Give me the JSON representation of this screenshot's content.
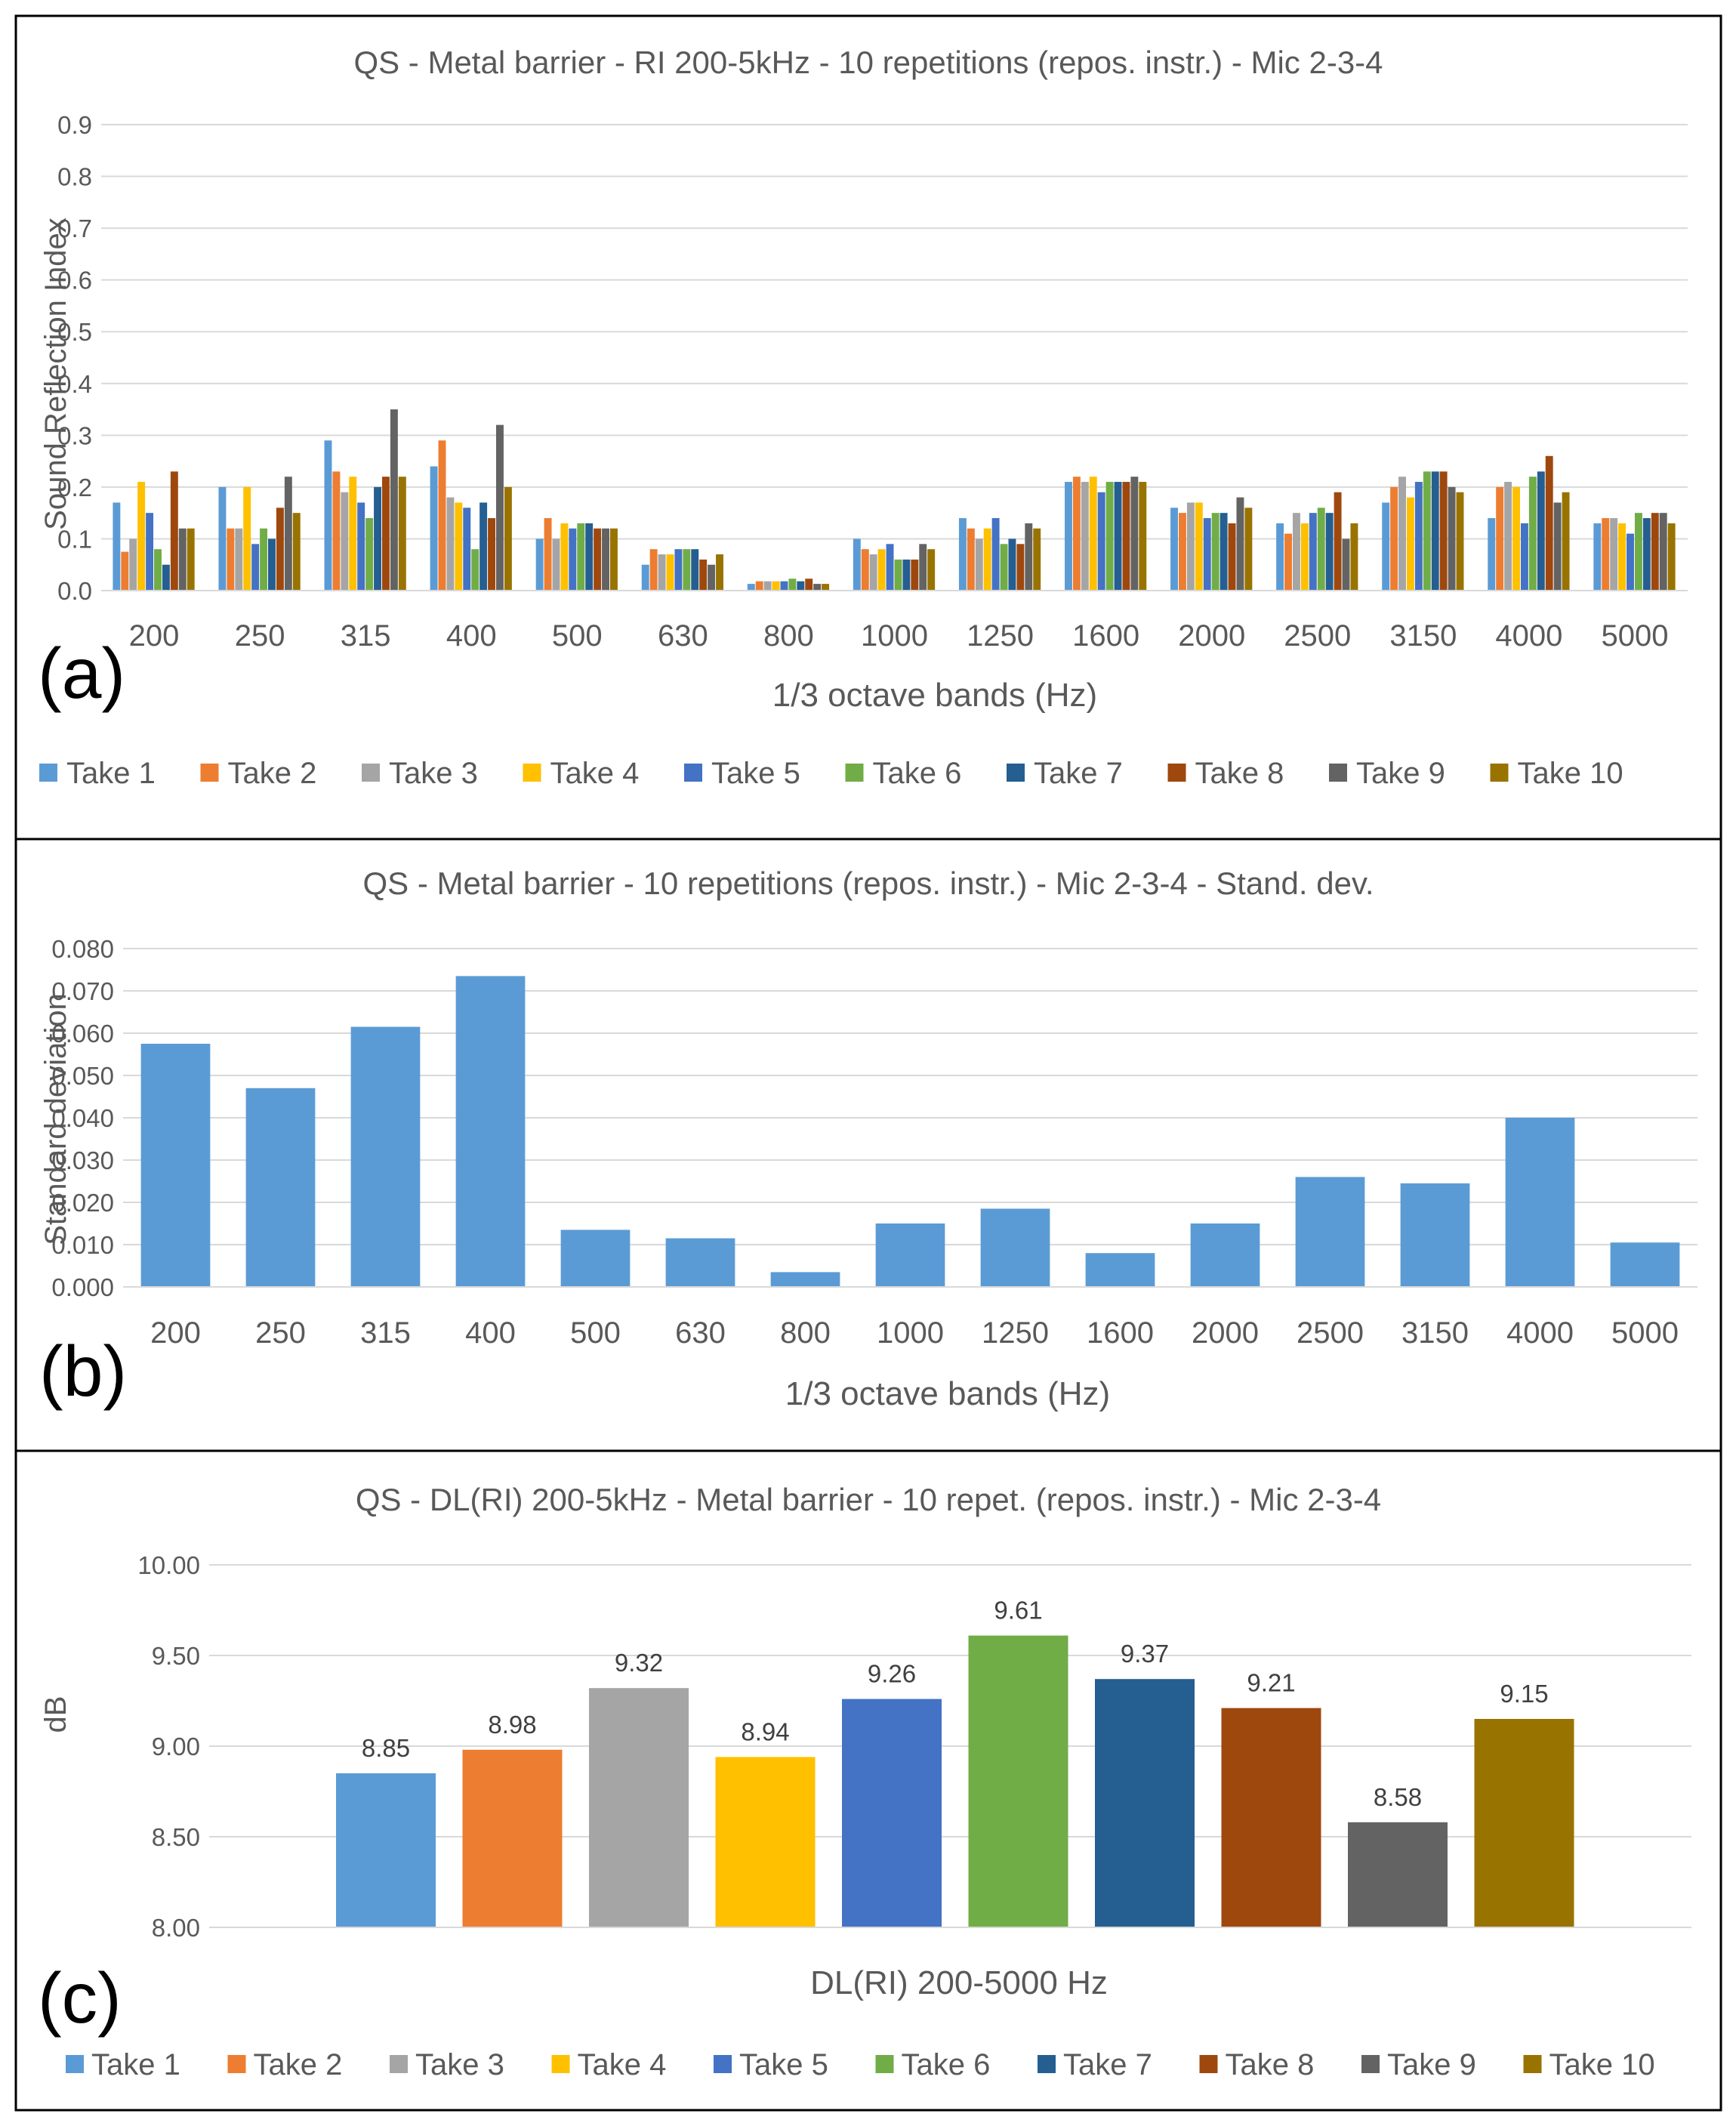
{
  "colors": {
    "take1": "#5B9BD5",
    "take2": "#ED7D31",
    "take3": "#A5A5A5",
    "take4": "#FFC000",
    "take5": "#4472C4",
    "take6": "#70AD47",
    "take7": "#255E91",
    "take8": "#9E480E",
    "take9": "#636363",
    "take10": "#997300",
    "grid": "#D9D9D9",
    "frame": "#000000"
  },
  "chart_data": [
    {
      "tag": "(a)",
      "type": "bar",
      "title": "QS - Metal barrier - RI 200-5kHz - 10 repetitions (repos. instr.) - Mic 2-3-4",
      "xlabel": "1/3 octave bands (Hz)",
      "ylabel": "Sound Reflection Index",
      "ylim": [
        0,
        0.9
      ],
      "yticks": [
        "0.0",
        "0.1",
        "0.2",
        "0.3",
        "0.4",
        "0.5",
        "0.6",
        "0.7",
        "0.8",
        "0.9"
      ],
      "categories": [
        "200",
        "250",
        "315",
        "400",
        "500",
        "630",
        "800",
        "1000",
        "1250",
        "1600",
        "2000",
        "2500",
        "3150",
        "4000",
        "5000"
      ],
      "legend": "bottom",
      "series": [
        {
          "name": "Take 1",
          "values": [
            0.17,
            0.2,
            0.29,
            0.24,
            0.1,
            0.05,
            0.013,
            0.1,
            0.14,
            0.21,
            0.16,
            0.13,
            0.17,
            0.14,
            0.13
          ]
        },
        {
          "name": "Take 2",
          "values": [
            0.075,
            0.12,
            0.23,
            0.29,
            0.14,
            0.08,
            0.018,
            0.08,
            0.12,
            0.22,
            0.15,
            0.11,
            0.2,
            0.2,
            0.14
          ]
        },
        {
          "name": "Take 3",
          "values": [
            0.1,
            0.12,
            0.19,
            0.18,
            0.1,
            0.07,
            0.018,
            0.07,
            0.1,
            0.21,
            0.17,
            0.15,
            0.22,
            0.21,
            0.14
          ]
        },
        {
          "name": "Take 4",
          "values": [
            0.21,
            0.2,
            0.22,
            0.17,
            0.13,
            0.07,
            0.018,
            0.08,
            0.12,
            0.22,
            0.17,
            0.13,
            0.18,
            0.2,
            0.13
          ]
        },
        {
          "name": "Take 5",
          "values": [
            0.15,
            0.09,
            0.17,
            0.16,
            0.12,
            0.08,
            0.018,
            0.09,
            0.14,
            0.19,
            0.14,
            0.15,
            0.21,
            0.13,
            0.11
          ]
        },
        {
          "name": "Take 6",
          "values": [
            0.08,
            0.12,
            0.14,
            0.08,
            0.13,
            0.08,
            0.023,
            0.06,
            0.09,
            0.21,
            0.15,
            0.16,
            0.23,
            0.22,
            0.15
          ]
        },
        {
          "name": "Take 7",
          "values": [
            0.05,
            0.1,
            0.2,
            0.17,
            0.13,
            0.08,
            0.018,
            0.06,
            0.1,
            0.21,
            0.15,
            0.15,
            0.23,
            0.23,
            0.14
          ]
        },
        {
          "name": "Take 8",
          "values": [
            0.23,
            0.16,
            0.22,
            0.14,
            0.12,
            0.06,
            0.023,
            0.06,
            0.09,
            0.21,
            0.13,
            0.19,
            0.23,
            0.26,
            0.15
          ]
        },
        {
          "name": "Take 9",
          "values": [
            0.12,
            0.22,
            0.35,
            0.32,
            0.12,
            0.05,
            0.013,
            0.09,
            0.13,
            0.22,
            0.18,
            0.1,
            0.2,
            0.17,
            0.15
          ]
        },
        {
          "name": "Take 10",
          "values": [
            0.12,
            0.15,
            0.22,
            0.2,
            0.12,
            0.07,
            0.013,
            0.08,
            0.12,
            0.21,
            0.16,
            0.13,
            0.19,
            0.19,
            0.13
          ]
        }
      ]
    },
    {
      "tag": "(b)",
      "type": "bar",
      "title": "QS - Metal barrier - 10 repetitions (repos. instr.) - Mic 2-3-4 - Stand. dev.",
      "xlabel": "1/3 octave bands (Hz)",
      "ylabel": "Standard deviation",
      "ylim": [
        0,
        0.08
      ],
      "yticks": [
        "0.000",
        "0.010",
        "0.020",
        "0.030",
        "0.040",
        "0.050",
        "0.060",
        "0.070",
        "0.080"
      ],
      "categories": [
        "200",
        "250",
        "315",
        "400",
        "500",
        "630",
        "800",
        "1000",
        "1250",
        "1600",
        "2000",
        "2500",
        "3150",
        "4000",
        "5000"
      ],
      "values": [
        0.0575,
        0.047,
        0.0615,
        0.0735,
        0.0135,
        0.0115,
        0.0035,
        0.015,
        0.0185,
        0.008,
        0.015,
        0.026,
        0.0245,
        0.04,
        0.0105
      ]
    },
    {
      "tag": "(c)",
      "type": "bar",
      "title": "QS - DL(RI) 200-5kHz - Metal barrier - 10 repet. (repos. instr.) - Mic 2-3-4",
      "xlabel": "DL(RI) 200-5000 Hz",
      "ylabel": "dB",
      "ylim": [
        8.0,
        10.0
      ],
      "yticks": [
        "8.00",
        "8.50",
        "9.00",
        "9.50",
        "10.00"
      ],
      "categories": [
        "Take 1",
        "Take 2",
        "Take 3",
        "Take 4",
        "Take 5",
        "Take 6",
        "Take 7",
        "Take 8",
        "Take 9",
        "Take 10"
      ],
      "values": [
        8.85,
        8.98,
        9.32,
        8.94,
        9.26,
        9.61,
        9.37,
        9.21,
        8.58,
        9.15
      ],
      "data_labels": [
        "8.85",
        "8.98",
        "9.32",
        "8.94",
        "9.26",
        "9.61",
        "9.37",
        "9.21",
        "8.58",
        "9.15"
      ],
      "legend": "bottom"
    }
  ]
}
